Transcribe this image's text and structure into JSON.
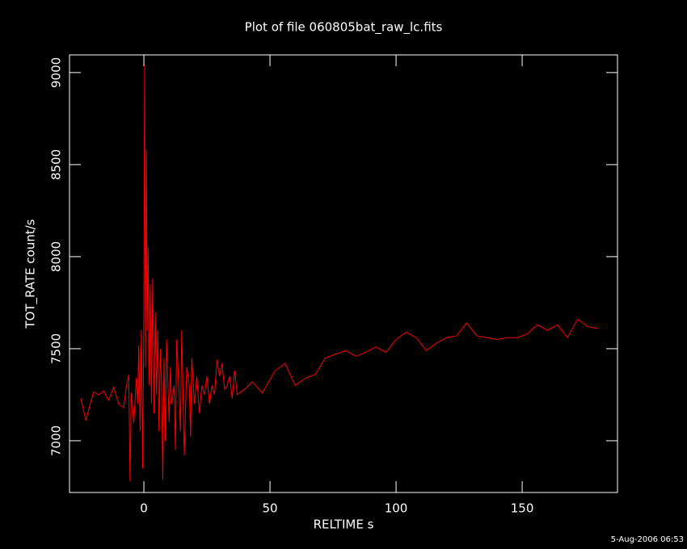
{
  "chart_data": {
    "type": "line",
    "title": "Plot of file 060805bat_raw_lc.fits",
    "x_label": "RELTIME  s",
    "y_label": "TOT_RATE  count/s",
    "timestamp": "5-Aug-2006 06:53",
    "color": "#ff0000",
    "x": [
      -25,
      -23,
      -20,
      -18,
      -16,
      -14,
      -12,
      -10,
      -8,
      -7,
      -6,
      -5.5,
      -5,
      -4,
      -3,
      -2.5,
      -2,
      -1.5,
      -1,
      -0.5,
      0,
      0.3,
      0.6,
      1,
      1.3,
      1.7,
      2,
      2.5,
      3,
      3.5,
      4,
      4.5,
      5,
      5.5,
      6,
      6.5,
      7,
      7.5,
      8,
      8.5,
      9,
      10,
      10.5,
      11,
      12,
      12.5,
      13,
      14,
      14.5,
      15,
      16,
      17,
      18,
      18.5,
      19,
      20,
      21,
      22,
      23,
      24,
      25,
      26,
      27,
      28,
      29,
      30,
      31,
      32,
      33,
      34,
      35,
      36,
      37,
      40,
      43,
      47,
      52,
      56,
      60,
      64,
      68,
      72,
      76,
      80,
      84,
      88,
      92,
      96,
      100,
      104,
      108,
      112,
      116,
      120,
      124,
      128,
      132,
      136,
      140,
      144,
      148,
      152,
      156,
      160,
      164,
      168,
      172,
      176,
      180
    ],
    "values": [
      7230,
      7110,
      7265,
      7250,
      7270,
      7220,
      7290,
      7200,
      7180,
      7290,
      7360,
      6780,
      7260,
      7100,
      7340,
      7200,
      7520,
      7050,
      7600,
      6850,
      7700,
      9040,
      7400,
      8580,
      7600,
      8050,
      7300,
      7850,
      7200,
      7880,
      7150,
      7700,
      7250,
      7600,
      7050,
      7500,
      7300,
      6790,
      7450,
      7000,
      7550,
      7100,
      7400,
      7200,
      7300,
      6950,
      7550,
      7250,
      7050,
      7600,
      6920,
      7400,
      7300,
      7020,
      7450,
      7200,
      7350,
      7150,
      7300,
      7250,
      7350,
      7200,
      7300,
      7250,
      7440,
      7350,
      7420,
      7280,
      7300,
      7350,
      7230,
      7380,
      7250,
      7280,
      7320,
      7260,
      7380,
      7420,
      7300,
      7340,
      7360,
      7450,
      7470,
      7490,
      7460,
      7480,
      7510,
      7480,
      7550,
      7590,
      7560,
      7490,
      7530,
      7560,
      7570,
      7640,
      7570,
      7560,
      7550,
      7560,
      7560,
      7580,
      7630,
      7600,
      7630,
      7560,
      7660,
      7620,
      7610
    ],
    "xlim": [
      -29.5,
      187.8
    ],
    "ylim": [
      6719,
      9096
    ],
    "xticks": [
      0,
      50,
      100,
      150
    ],
    "yticks": [
      7000,
      7500,
      8000,
      8500,
      9000
    ]
  }
}
